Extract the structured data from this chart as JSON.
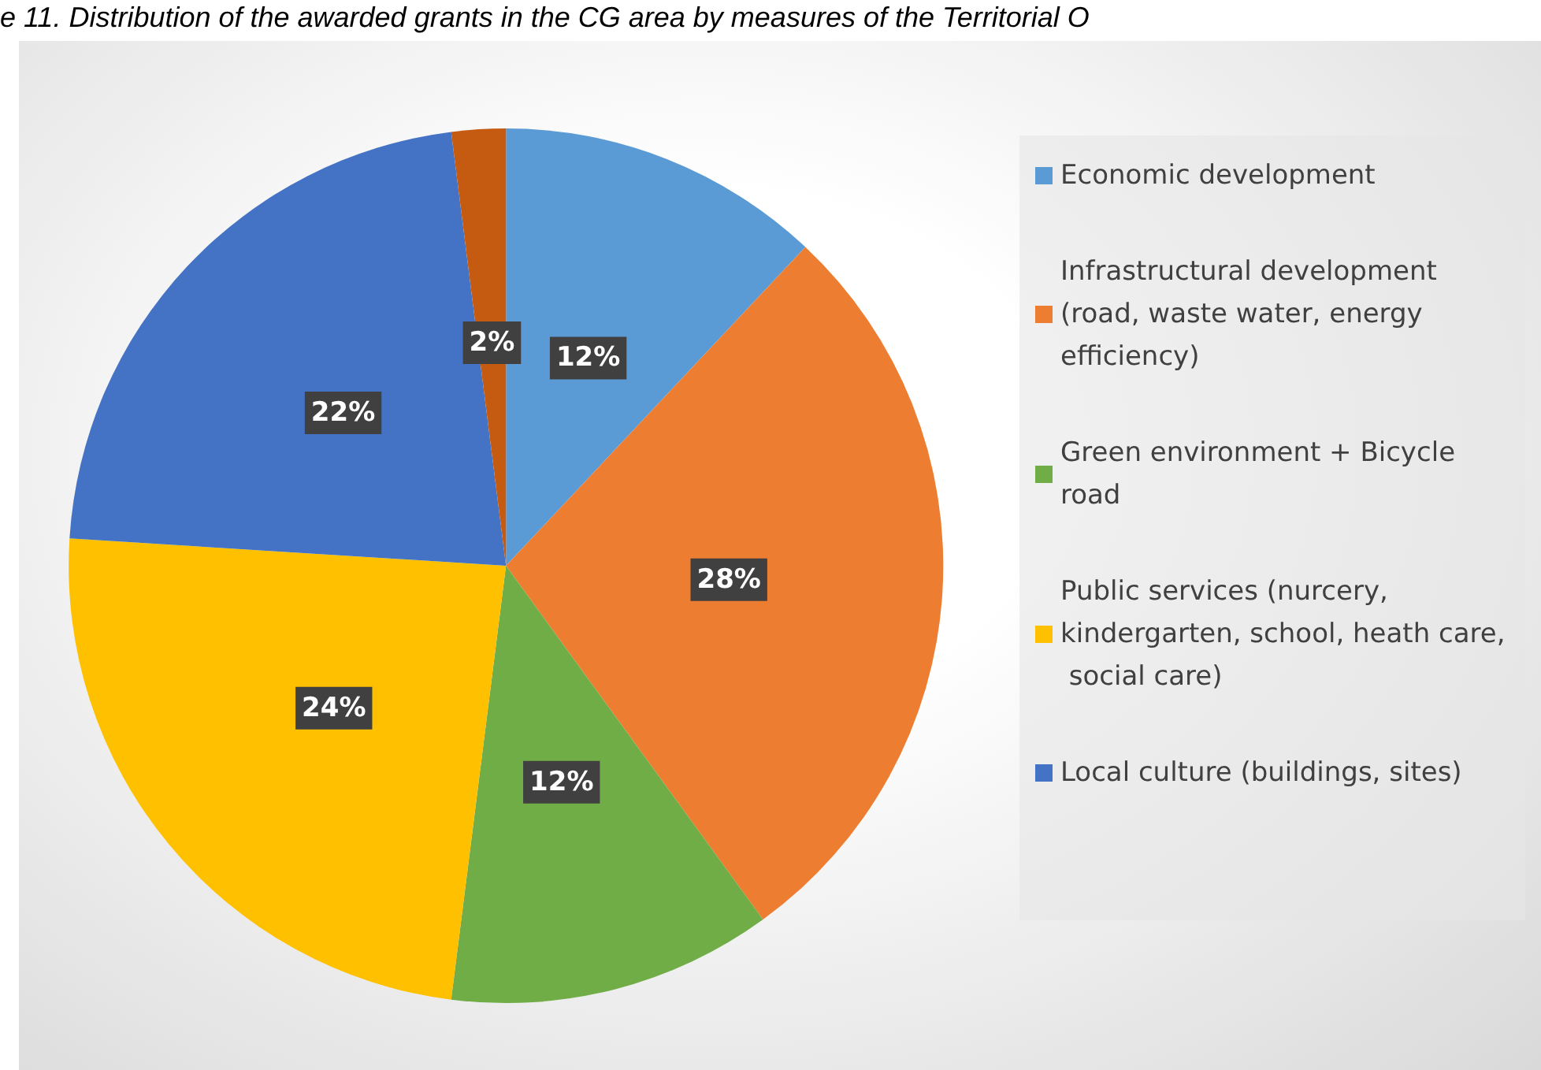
{
  "chart_data": {
    "type": "pie",
    "title": "e 11. Distribution of the awarded grants in the CG area by measures of the Territorial O",
    "categories": [
      "Economic development",
      "Infrastructural development (road, waste water, energy efficiency)",
      "Green environment + Bicycle road",
      "Public services (nurcery, kindergarten, school, heath care, social care)",
      "Local culture (buildings, sites)",
      null
    ],
    "values": [
      12,
      28,
      12,
      24,
      22,
      2
    ],
    "value_labels": [
      "12%",
      "28%",
      "12%",
      "24%",
      "22%",
      "2%"
    ],
    "colors": [
      "#5b9bd5",
      "#ed7d31",
      "#70ad47",
      "#ffc000",
      "#4472c4",
      "#c55a11"
    ],
    "legend": "right"
  }
}
